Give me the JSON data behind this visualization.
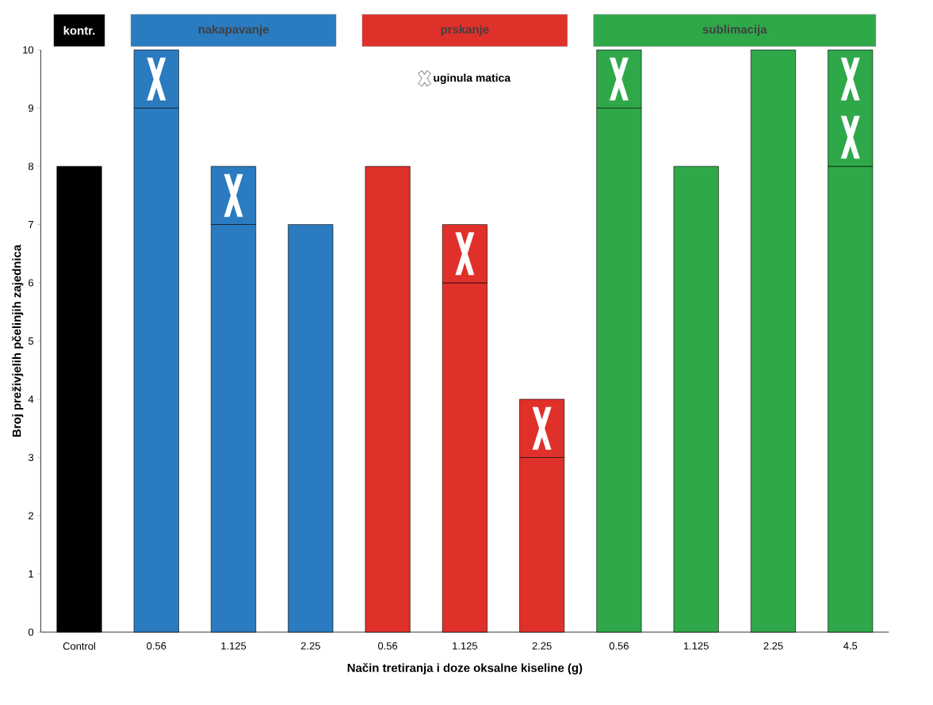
{
  "chart_data": {
    "type": "bar",
    "stacked": true,
    "xlabel": "Način tretiranja i doze oksalne kiseline (g)",
    "ylabel": "Broj preživjelih pčelinjih zajednica",
    "categories": [
      "Control",
      "0.56",
      "1.125",
      "2.25",
      "0.56",
      "1.125",
      "2.25",
      "0.56",
      "1.125",
      "2.25",
      "4.5"
    ],
    "series": [
      {
        "colors": [
          "#000000",
          "#2a7bc0",
          "#2a7bc0",
          "#2a7bc0",
          "#e0302a",
          "#e0302a",
          "#e0302a",
          "#2fa84a",
          "#2fa84a",
          "#2fa84a",
          "#2fa84a"
        ],
        "values": [
          8,
          9,
          7,
          7,
          8,
          6,
          3,
          9,
          8,
          10,
          8
        ]
      },
      {
        "name": "uginula matica",
        "colors": [
          "#000000",
          "#2a7bc0",
          "#2a7bc0",
          "#2a7bc0",
          "#e0302a",
          "#e0302a",
          "#e0302a",
          "#2fa84a",
          "#2fa84a",
          "#2fa84a",
          "#2fa84a"
        ],
        "values": [
          null,
          1,
          1,
          null,
          null,
          1,
          1,
          1,
          null,
          null,
          2
        ]
      }
    ],
    "ylim": [
      0,
      10
    ],
    "yticks": [
      0,
      1,
      2,
      3,
      4,
      5,
      6,
      7,
      8,
      9,
      10
    ],
    "legend": "top",
    "annotations": [
      "kontr.",
      "nakapavanje",
      "prskanje",
      "sublimacija"
    ]
  }
}
